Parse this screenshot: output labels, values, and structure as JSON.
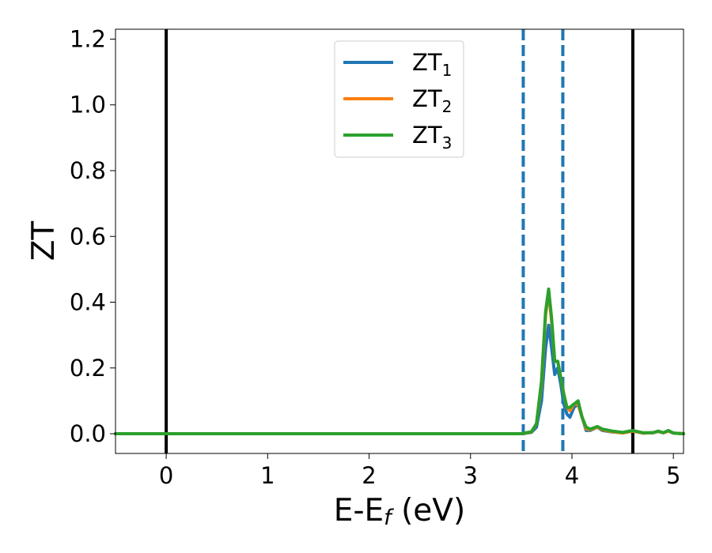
{
  "chart_data": {
    "type": "line",
    "xlabel": "E-E",
    "xlabel_sub": "f",
    "xlabel_unit": " (eV)",
    "ylabel": "ZT",
    "xlim": [
      -0.5,
      5.1
    ],
    "ylim": [
      -0.06,
      1.23
    ],
    "x_ticks": [
      0,
      1,
      2,
      3,
      4,
      5
    ],
    "y_ticks": [
      0.0,
      0.2,
      0.4,
      0.6,
      0.8,
      1.0,
      1.2
    ],
    "x_tick_labels": [
      "0",
      "1",
      "2",
      "3",
      "4",
      "5"
    ],
    "y_tick_labels": [
      "0.0",
      "0.2",
      "0.4",
      "0.6",
      "0.8",
      "1.0",
      "1.2"
    ],
    "grid": false,
    "legend_position": "top-center",
    "vertical_lines": [
      {
        "x": 0.0,
        "style": "solid",
        "color": "#000000"
      },
      {
        "x": 4.6,
        "style": "solid",
        "color": "#000000"
      },
      {
        "x": 3.52,
        "style": "dashed",
        "color": "#1f77b4"
      },
      {
        "x": 3.91,
        "style": "dashed",
        "color": "#1f77b4"
      }
    ],
    "series": [
      {
        "name": "ZT",
        "sub": "1",
        "color": "#1f77b4",
        "x": [
          -0.5,
          3.5,
          3.6,
          3.65,
          3.7,
          3.74,
          3.77,
          3.8,
          3.83,
          3.86,
          3.89,
          3.92,
          3.95,
          3.98,
          4.02,
          4.06,
          4.1,
          4.14,
          4.18,
          4.25,
          4.3,
          4.4,
          4.5,
          4.6,
          4.7,
          4.8,
          4.85,
          4.9,
          4.95,
          5.0,
          5.1
        ],
        "y": [
          0.0,
          0.0,
          0.004,
          0.02,
          0.1,
          0.26,
          0.33,
          0.26,
          0.18,
          0.2,
          0.15,
          0.09,
          0.06,
          0.05,
          0.08,
          0.09,
          0.05,
          0.01,
          0.01,
          0.02,
          0.01,
          0.005,
          0.003,
          0.008,
          0.002,
          0.003,
          0.007,
          0.003,
          0.008,
          0.002,
          0.0
        ]
      },
      {
        "name": "ZT",
        "sub": "2",
        "color": "#ff7f0e",
        "x": [
          -0.5,
          3.5,
          3.6,
          3.65,
          3.7,
          3.74,
          3.77,
          3.8,
          3.83,
          3.86,
          3.89,
          3.92,
          3.95,
          3.98,
          4.02,
          4.06,
          4.1,
          4.14,
          4.18,
          4.25,
          4.3,
          4.4,
          4.5,
          4.6,
          4.7,
          4.8,
          4.85,
          4.9,
          4.95,
          5.0,
          5.1
        ],
        "y": [
          0.0,
          0.0,
          0.005,
          0.03,
          0.15,
          0.36,
          0.43,
          0.34,
          0.22,
          0.22,
          0.17,
          0.12,
          0.08,
          0.07,
          0.09,
          0.09,
          0.05,
          0.015,
          0.012,
          0.02,
          0.012,
          0.006,
          0.002,
          0.008,
          0.002,
          0.003,
          0.007,
          0.003,
          0.008,
          0.002,
          0.0
        ]
      },
      {
        "name": "ZT",
        "sub": "3",
        "color": "#2ca02c",
        "x": [
          -0.5,
          3.5,
          3.6,
          3.65,
          3.7,
          3.74,
          3.77,
          3.8,
          3.83,
          3.86,
          3.89,
          3.92,
          3.95,
          3.98,
          4.02,
          4.06,
          4.1,
          4.14,
          4.18,
          4.25,
          4.3,
          4.4,
          4.5,
          4.6,
          4.7,
          4.8,
          4.85,
          4.9,
          4.95,
          5.0,
          5.1
        ],
        "y": [
          0.0,
          0.0,
          0.006,
          0.03,
          0.16,
          0.37,
          0.44,
          0.35,
          0.22,
          0.22,
          0.17,
          0.12,
          0.08,
          0.08,
          0.09,
          0.1,
          0.05,
          0.02,
          0.014,
          0.022,
          0.014,
          0.008,
          0.004,
          0.01,
          0.003,
          0.003,
          0.008,
          0.003,
          0.01,
          0.002,
          0.0
        ]
      }
    ]
  }
}
